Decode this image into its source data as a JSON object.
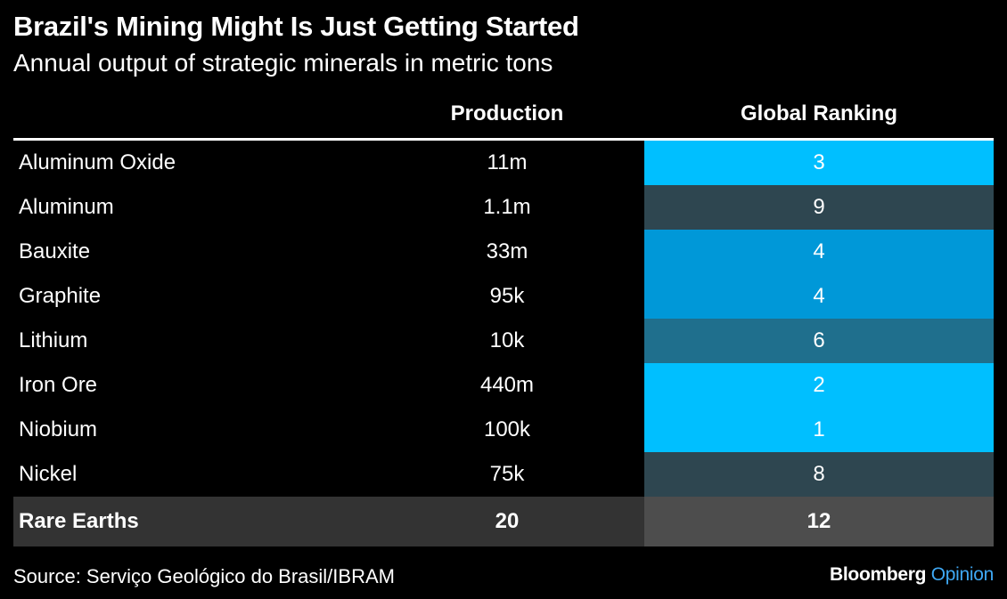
{
  "title": "Brazil's Mining Might Is Just Getting Started",
  "subtitle": "Annual output of strategic minerals in metric tons",
  "source": "Source: Serviço Geológico do Brasil/IBRAM",
  "brand": {
    "name": "Bloomberg",
    "section": "Opinion"
  },
  "colors": {
    "rank_1_3": "#00bfff",
    "rank_4": "#0098d8",
    "rank_6": "#1f6f8d",
    "rank_8_9": "#2e4650",
    "highlight_row": "#333333",
    "highlight_rank": "#4d4d4d"
  },
  "chart_data": {
    "type": "table",
    "title": "Brazil's Mining Might Is Just Getting Started",
    "subtitle": "Annual output of strategic minerals in metric tons",
    "columns": [
      "",
      "Production",
      "Global Ranking"
    ],
    "rows": [
      {
        "mineral": "Aluminum Oxide",
        "production": "11m",
        "ranking": "3",
        "rank_value": 3,
        "rank_color": "#00bfff"
      },
      {
        "mineral": "Aluminum",
        "production": "1.1m",
        "ranking": "9",
        "rank_value": 9,
        "rank_color": "#2e4650"
      },
      {
        "mineral": "Bauxite",
        "production": "33m",
        "ranking": "4",
        "rank_value": 4,
        "rank_color": "#0098d8"
      },
      {
        "mineral": "Graphite",
        "production": "95k",
        "ranking": "4",
        "rank_value": 4,
        "rank_color": "#0098d8"
      },
      {
        "mineral": "Lithium",
        "production": "10k",
        "ranking": "6",
        "rank_value": 6,
        "rank_color": "#1f6f8d"
      },
      {
        "mineral": "Iron Ore",
        "production": "440m",
        "ranking": "2",
        "rank_value": 2,
        "rank_color": "#00bfff"
      },
      {
        "mineral": "Niobium",
        "production": "100k",
        "ranking": "1",
        "rank_value": 1,
        "rank_color": "#00bfff"
      },
      {
        "mineral": "Nickel",
        "production": "75k",
        "ranking": "8",
        "rank_value": 8,
        "rank_color": "#2e4650"
      },
      {
        "mineral": "Rare Earths",
        "production": "20",
        "ranking": "12",
        "rank_value": 12,
        "highlight": true
      }
    ]
  }
}
